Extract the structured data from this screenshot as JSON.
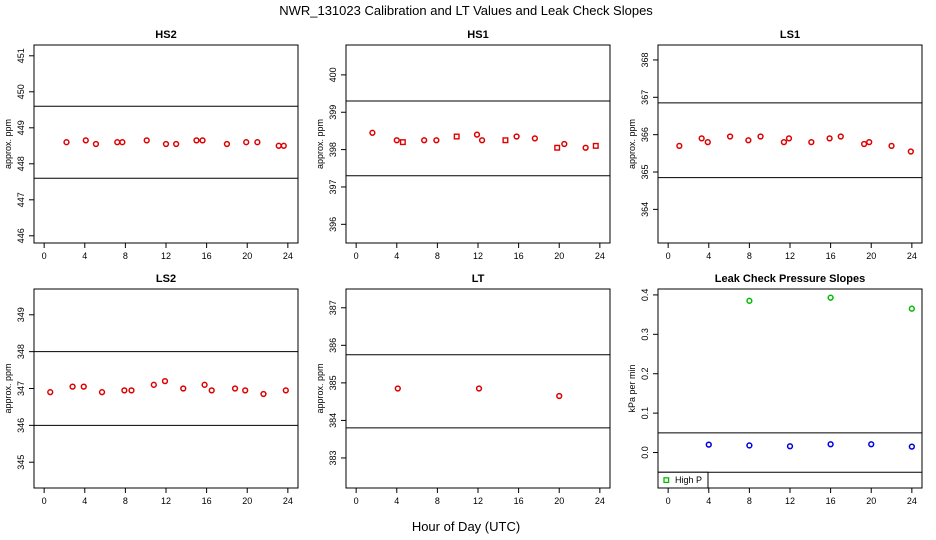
{
  "figure": {
    "title": "NWR_131023  Calibration and LT Values and Leak Check Slopes",
    "xlabel": "Hour of Day (UTC)"
  },
  "chart_data": [
    {
      "type": "scatter",
      "title": "HS2",
      "ylabel": "approx. ppm",
      "xlim": [
        -1,
        25
      ],
      "ylim": [
        445.8,
        451.3
      ],
      "xticks": [
        0,
        4,
        8,
        12,
        16,
        20,
        24
      ],
      "yticks": [
        446,
        447,
        448,
        449,
        450,
        451
      ],
      "hlines": [
        447.6,
        449.6
      ],
      "color": "#dd0000",
      "marker": "circle",
      "series": [
        {
          "x": [
            2.2,
            4.1,
            5.1,
            7.2,
            7.7,
            10.1,
            12.0,
            13.0,
            15.0,
            15.6,
            18.0,
            19.9,
            21.0,
            23.1,
            23.6
          ],
          "y": [
            448.6,
            448.65,
            448.55,
            448.6,
            448.6,
            448.65,
            448.55,
            448.55,
            448.65,
            448.65,
            448.55,
            448.6,
            448.6,
            448.5,
            448.5
          ]
        }
      ]
    },
    {
      "type": "scatter",
      "title": "HS1",
      "ylabel": "approx. ppm",
      "xlim": [
        -1,
        25
      ],
      "ylim": [
        395.5,
        400.8
      ],
      "xticks": [
        0,
        4,
        8,
        12,
        16,
        20,
        24
      ],
      "yticks": [
        396,
        397,
        398,
        399,
        400
      ],
      "hlines": [
        397.3,
        399.3
      ],
      "color": "#dd0000",
      "marker": "mixed",
      "series": [
        {
          "x": [
            1.6,
            4.0,
            4.6,
            6.7,
            7.9,
            9.9,
            11.9,
            12.4,
            14.7,
            15.8,
            17.6,
            19.8,
            20.5,
            22.6,
            23.6
          ],
          "y": [
            398.45,
            398.25,
            398.2,
            398.25,
            398.25,
            398.35,
            398.4,
            398.25,
            398.25,
            398.35,
            398.3,
            398.05,
            398.15,
            398.05,
            398.1
          ]
        }
      ]
    },
    {
      "type": "scatter",
      "title": "LS1",
      "ylabel": "approx. ppm",
      "xlim": [
        -1,
        25
      ],
      "ylim": [
        363.1,
        368.4
      ],
      "xticks": [
        0,
        4,
        8,
        12,
        16,
        20,
        24
      ],
      "yticks": [
        364,
        365,
        366,
        367,
        368
      ],
      "hlines": [
        364.85,
        366.85
      ],
      "color": "#dd0000",
      "marker": "circle",
      "series": [
        {
          "x": [
            1.1,
            3.3,
            3.9,
            6.1,
            7.9,
            9.1,
            11.4,
            11.9,
            14.1,
            15.9,
            17.0,
            19.3,
            19.8,
            22.0,
            23.9
          ],
          "y": [
            365.7,
            365.9,
            365.8,
            365.95,
            365.85,
            365.95,
            365.8,
            365.9,
            365.8,
            365.9,
            365.95,
            365.75,
            365.8,
            365.7,
            365.55
          ]
        }
      ]
    },
    {
      "type": "scatter",
      "title": "LS2",
      "ylabel": "approx. ppm",
      "xlim": [
        -1,
        25
      ],
      "ylim": [
        344.3,
        349.7
      ],
      "xticks": [
        0,
        4,
        8,
        12,
        16,
        20,
        24
      ],
      "yticks": [
        345,
        346,
        347,
        348,
        349
      ],
      "hlines": [
        346.0,
        348.0
      ],
      "color": "#dd0000",
      "marker": "circle",
      "series": [
        {
          "x": [
            0.6,
            2.8,
            3.9,
            5.7,
            7.9,
            8.6,
            10.8,
            11.9,
            13.7,
            15.8,
            16.5,
            18.8,
            19.8,
            21.6,
            23.8
          ],
          "y": [
            346.9,
            347.05,
            347.05,
            346.9,
            346.95,
            346.95,
            347.1,
            347.2,
            347.0,
            347.1,
            346.95,
            347.0,
            346.95,
            346.85,
            346.95
          ]
        }
      ]
    },
    {
      "type": "scatter",
      "title": "LT",
      "ylabel": "approx. ppm",
      "xlim": [
        -1,
        25
      ],
      "ylim": [
        382.2,
        387.5
      ],
      "xticks": [
        0,
        4,
        8,
        12,
        16,
        20,
        24
      ],
      "yticks": [
        383,
        384,
        385,
        386,
        387
      ],
      "hlines": [
        383.8,
        385.75
      ],
      "color": "#dd0000",
      "marker": "circle",
      "series": [
        {
          "x": [
            4.1,
            12.1,
            20.0
          ],
          "y": [
            384.85,
            384.85,
            384.65
          ]
        }
      ]
    },
    {
      "type": "scatter",
      "title": "Leak Check Pressure Slopes",
      "ylabel": "kPa per min",
      "xlim": [
        -1,
        25
      ],
      "ylim": [
        -0.09,
        0.415
      ],
      "xticks": [
        0,
        4,
        8,
        12,
        16,
        20,
        24
      ],
      "yticks": [
        0.0,
        0.1,
        0.2,
        0.3,
        0.4
      ],
      "ytick_labels": [
        "0.0",
        "0.1",
        "0.2",
        "0.3",
        "0.4"
      ],
      "hlines": [
        0.05,
        -0.05
      ],
      "legend": {
        "position": "bottom-left",
        "label": "High P",
        "color": "#00bb00"
      },
      "series": [
        {
          "name": "High P",
          "color": "#00bb00",
          "x": [
            8.0,
            16.0,
            24.0
          ],
          "y": [
            0.385,
            0.393,
            0.365
          ]
        },
        {
          "color": "#0000dd",
          "x": [
            4.0,
            8.0,
            12.0,
            16.0,
            20.0,
            24.0
          ],
          "y": [
            0.02,
            0.018,
            0.016,
            0.021,
            0.021,
            0.015
          ]
        }
      ]
    }
  ]
}
